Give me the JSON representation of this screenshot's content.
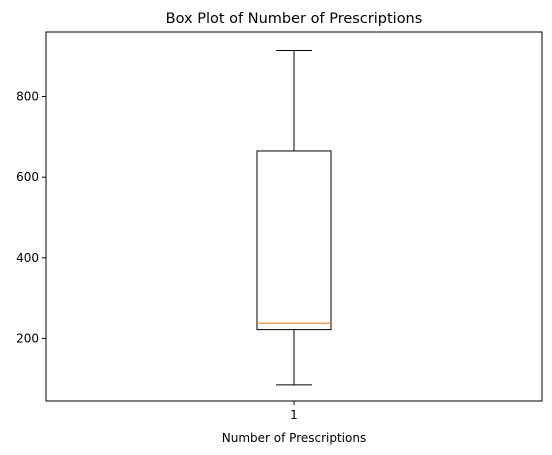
{
  "chart_data": {
    "type": "box",
    "title": "Box Plot of Number of Prescriptions",
    "xlabel": "Number of Prescriptions",
    "ylabel": "",
    "categories": [
      "1"
    ],
    "ylim": [
      45,
      960
    ],
    "yticks": [
      200,
      400,
      600,
      800
    ],
    "ytick_labels": [
      "200",
      "400",
      "600",
      "800"
    ],
    "boxes": [
      {
        "category": "1",
        "whisker_low": 85,
        "q1": 222,
        "median": 238,
        "q3": 665,
        "whisker_high": 914
      }
    ],
    "grid": false,
    "colors": {
      "box": "#000000",
      "median": "#ff7f0e",
      "whisker": "#000000"
    }
  }
}
